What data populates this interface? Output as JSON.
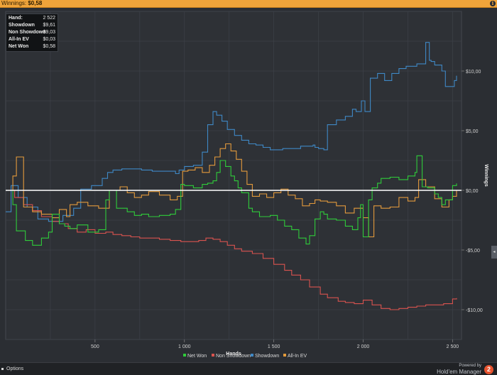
{
  "window": {
    "title_label": "Winnings:",
    "title_value": "$0,58",
    "info_icon": "info-icon",
    "info_glyph": "i"
  },
  "stats": [
    {
      "label": "Hand:",
      "value": "2 522"
    },
    {
      "label": "Showdown",
      "value": "$9,61"
    },
    {
      "label": "Non Showdown",
      "value": "-$9,03"
    },
    {
      "label": "All-In EV",
      "value": "$0,03"
    },
    {
      "label": "Net Won",
      "value": "$0,58"
    }
  ],
  "bottom": {
    "options_label": "Options",
    "powered_label": "Powered by",
    "brand_label": "Hold'em Manager",
    "brand_logo": "2",
    "side_tab_glyph": "◂"
  },
  "colors": {
    "net_won": "#2fcc3a",
    "non_showdown": "#d9534f",
    "showdown": "#3f88c5",
    "all_in_ev": "#e39a3c",
    "zero_line": "#ffffff",
    "grid": "#3d4149"
  },
  "chart_data": {
    "type": "line",
    "xlabel": "Hands",
    "ylabel": "Winnings",
    "xlim": [
      0,
      2550
    ],
    "ylim": [
      -12.5,
      15
    ],
    "x_ticks": [
      {
        "v": 500,
        "label": "500"
      },
      {
        "v": 1000,
        "label": "1 000"
      },
      {
        "v": 1500,
        "label": "1 500"
      },
      {
        "v": 2000,
        "label": "2 000"
      },
      {
        "v": 2500,
        "label": "2 500"
      }
    ],
    "y_ticks": [
      {
        "v": 10,
        "label": "$10,00"
      },
      {
        "v": 5,
        "label": "$5,00"
      },
      {
        "v": 0,
        "label": "$0,00"
      },
      {
        "v": -5,
        "label": "-$5,00"
      },
      {
        "v": -10,
        "label": "-$10,00"
      }
    ],
    "grid": true,
    "legend_position": "bottom-center",
    "series": [
      {
        "name": "Net Won",
        "color": "#2fcc3a",
        "x": [
          0,
          40,
          60,
          110,
          150,
          200,
          240,
          260,
          300,
          330,
          360,
          400,
          460,
          520,
          560,
          580,
          620,
          680,
          720,
          760,
          800,
          860,
          920,
          950,
          980,
          1000,
          1050,
          1100,
          1130,
          1160,
          1180,
          1200,
          1230,
          1260,
          1280,
          1300,
          1320,
          1360,
          1380,
          1420,
          1480,
          1520,
          1560,
          1600,
          1640,
          1680,
          1700,
          1730,
          1760,
          1780,
          1800,
          1850,
          1900,
          1940,
          1970,
          1985,
          2000,
          2030,
          2050,
          2080,
          2100,
          2150,
          2200,
          2250,
          2290,
          2300,
          2330,
          2360,
          2400,
          2420,
          2440,
          2460,
          2500,
          2522
        ],
        "y": [
          0,
          -1.2,
          -3.4,
          -4.2,
          -4.6,
          -4.0,
          -3.5,
          -2.0,
          -2.8,
          -3.0,
          -3.2,
          -2.9,
          -3.5,
          -3.3,
          -0.8,
          0.0,
          -1.5,
          -1.8,
          -2.1,
          -2.0,
          -2.2,
          -2.1,
          -2.0,
          -1.6,
          0.5,
          0.4,
          0.2,
          0.5,
          0.6,
          0.8,
          1.5,
          2.5,
          2.0,
          1.2,
          0.8,
          0.2,
          -0.2,
          -1.5,
          -1.8,
          -2.2,
          -2.1,
          -2.5,
          -3.0,
          -3.3,
          -4.0,
          -4.5,
          -3.8,
          -2.4,
          -1.8,
          -2.0,
          -2.4,
          -2.5,
          -3.0,
          -3.3,
          -2.3,
          -1.2,
          -3.9,
          -0.8,
          0.2,
          0.6,
          1.0,
          1.1,
          0.9,
          1.2,
          1.5,
          2.9,
          0.3,
          0.2,
          -0.3,
          -0.6,
          -1.2,
          -0.8,
          0.4,
          0.58
        ]
      },
      {
        "name": "Non Showdown",
        "color": "#d9534f",
        "x": [
          0,
          50,
          100,
          150,
          200,
          260,
          300,
          350,
          400,
          450,
          500,
          560,
          600,
          650,
          700,
          750,
          800,
          860,
          920,
          980,
          1020,
          1080,
          1120,
          1160,
          1200,
          1240,
          1280,
          1320,
          1380,
          1440,
          1500,
          1560,
          1600,
          1650,
          1700,
          1760,
          1800,
          1860,
          1900,
          1950,
          2000,
          2050,
          2100,
          2150,
          2200,
          2250,
          2300,
          2350,
          2400,
          2450,
          2500,
          2522
        ],
        "y": [
          0,
          -0.6,
          -1.2,
          -1.7,
          -2.2,
          -2.6,
          -2.8,
          -3.2,
          -3.5,
          -3.3,
          -3.6,
          -3.5,
          -3.7,
          -3.8,
          -3.9,
          -4.0,
          -4.0,
          -4.1,
          -4.2,
          -4.3,
          -4.3,
          -4.2,
          -4.0,
          -4.1,
          -4.3,
          -4.6,
          -4.9,
          -5.1,
          -5.3,
          -5.7,
          -6.2,
          -6.7,
          -7.1,
          -7.5,
          -8.1,
          -8.7,
          -9.0,
          -9.3,
          -9.4,
          -9.5,
          -9.2,
          -9.6,
          -9.9,
          -10.0,
          -9.9,
          -9.8,
          -9.7,
          -9.6,
          -9.6,
          -9.5,
          -9.1,
          -9.03
        ]
      },
      {
        "name": "Showdown",
        "color": "#3f88c5",
        "x": [
          0,
          30,
          70,
          120,
          180,
          240,
          320,
          380,
          420,
          480,
          540,
          570,
          600,
          650,
          700,
          760,
          820,
          900,
          950,
          970,
          1000,
          1050,
          1100,
          1130,
          1160,
          1180,
          1210,
          1240,
          1280,
          1320,
          1360,
          1400,
          1440,
          1480,
          1550,
          1600,
          1650,
          1700,
          1720,
          1730,
          1750,
          1780,
          1800,
          1850,
          1900,
          1940,
          1960,
          1990,
          2010,
          2040,
          2080,
          2120,
          2160,
          2200,
          2240,
          2300,
          2350,
          2370,
          2380,
          2400,
          2440,
          2460,
          2480,
          2510,
          2522
        ],
        "y": [
          -1.8,
          0.4,
          -0.6,
          -1.4,
          -2.4,
          -2.6,
          -2.1,
          -1.5,
          0.1,
          0.4,
          1.0,
          1.5,
          1.7,
          1.8,
          1.8,
          1.7,
          1.6,
          1.6,
          1.4,
          1.7,
          2.0,
          2.1,
          3.2,
          5.5,
          6.6,
          6.3,
          5.8,
          5.1,
          4.6,
          4.2,
          3.9,
          3.8,
          3.6,
          3.4,
          3.5,
          3.5,
          3.7,
          3.7,
          3.8,
          3.6,
          3.5,
          3.4,
          5.5,
          5.9,
          6.2,
          6.8,
          6.6,
          7.5,
          6.6,
          9.4,
          9.8,
          9.2,
          9.8,
          10.2,
          10.4,
          10.6,
          12.4,
          10.9,
          10.8,
          10.5,
          10.0,
          8.7,
          8.7,
          9.2,
          9.61
        ]
      },
      {
        "name": "All-In EV",
        "color": "#e39a3c",
        "x": [
          0,
          40,
          60,
          100,
          150,
          200,
          260,
          300,
          340,
          360,
          400,
          460,
          520,
          580,
          640,
          680,
          720,
          760,
          800,
          860,
          920,
          960,
          990,
          1020,
          1060,
          1100,
          1140,
          1170,
          1200,
          1230,
          1260,
          1290,
          1320,
          1350,
          1380,
          1420,
          1460,
          1500,
          1540,
          1580,
          1620,
          1660,
          1700,
          1730,
          1760,
          1800,
          1850,
          1900,
          1950,
          2000,
          2030,
          2060,
          2100,
          2150,
          2200,
          2250,
          2290,
          2310,
          2350,
          2400,
          2440,
          2480,
          2500,
          2522
        ],
        "y": [
          0,
          1.2,
          2.8,
          -1.4,
          -1.8,
          -2.0,
          -2.3,
          -1.6,
          -2.2,
          -1.2,
          -1.0,
          -1.3,
          -1.5,
          0.0,
          0.3,
          -0.2,
          -0.6,
          -0.4,
          -0.1,
          -0.4,
          -0.8,
          -0.5,
          1.6,
          1.7,
          1.9,
          1.5,
          2.1,
          2.8,
          3.5,
          3.9,
          3.3,
          2.6,
          1.6,
          0.5,
          -0.5,
          -0.3,
          -0.6,
          -0.2,
          0.1,
          -0.4,
          -0.7,
          -1.3,
          -1.1,
          -0.8,
          -0.9,
          -1.0,
          -1.3,
          -1.9,
          -1.5,
          -2.3,
          -3.9,
          -1.3,
          -1.5,
          -1.4,
          -0.6,
          -0.9,
          -0.6,
          0.9,
          0.3,
          -0.7,
          -1.4,
          -0.8,
          -0.5,
          0.03
        ]
      }
    ]
  }
}
